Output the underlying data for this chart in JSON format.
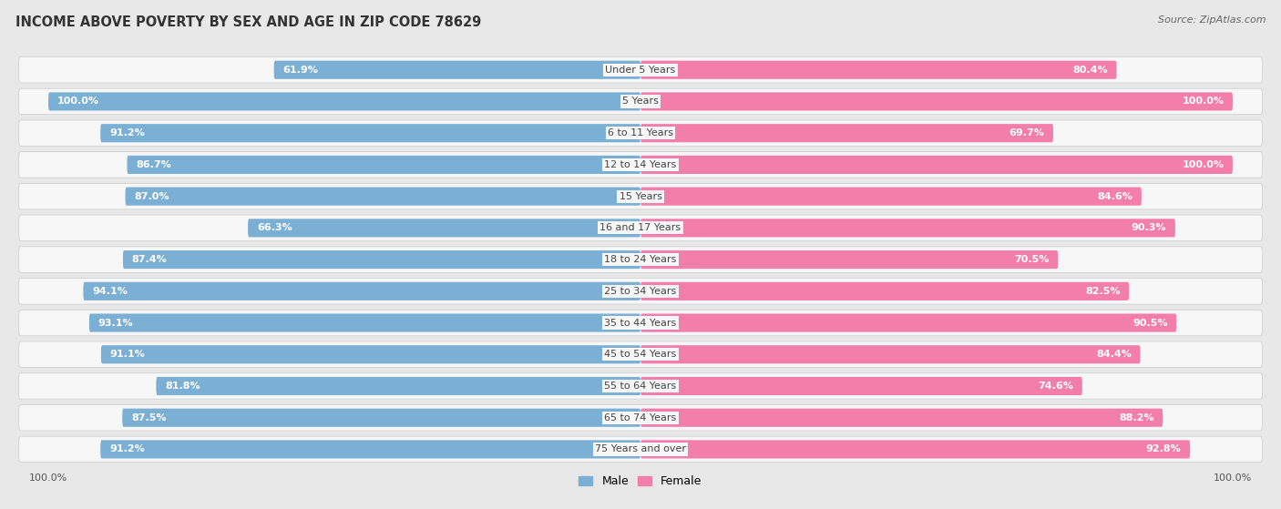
{
  "title": "INCOME ABOVE POVERTY BY SEX AND AGE IN ZIP CODE 78629",
  "source": "Source: ZipAtlas.com",
  "categories": [
    "Under 5 Years",
    "5 Years",
    "6 to 11 Years",
    "12 to 14 Years",
    "15 Years",
    "16 and 17 Years",
    "18 to 24 Years",
    "25 to 34 Years",
    "35 to 44 Years",
    "45 to 54 Years",
    "55 to 64 Years",
    "65 to 74 Years",
    "75 Years and over"
  ],
  "male_values": [
    61.9,
    100.0,
    91.2,
    86.7,
    87.0,
    66.3,
    87.4,
    94.1,
    93.1,
    91.1,
    81.8,
    87.5,
    91.2
  ],
  "female_values": [
    80.4,
    100.0,
    69.7,
    100.0,
    84.6,
    90.3,
    70.5,
    82.5,
    90.5,
    84.4,
    74.6,
    88.2,
    92.8
  ],
  "male_color": "#7bafd4",
  "male_color_light": "#b8d4e8",
  "female_color": "#f27ea9",
  "female_color_light": "#f7b8cf",
  "male_label": "Male",
  "female_label": "Female",
  "bg_color": "#e8e8e8",
  "row_bg_color": "#f0f0f0",
  "title_fontsize": 10.5,
  "source_fontsize": 8,
  "label_fontsize": 8,
  "category_fontsize": 8,
  "legend_fontsize": 9
}
